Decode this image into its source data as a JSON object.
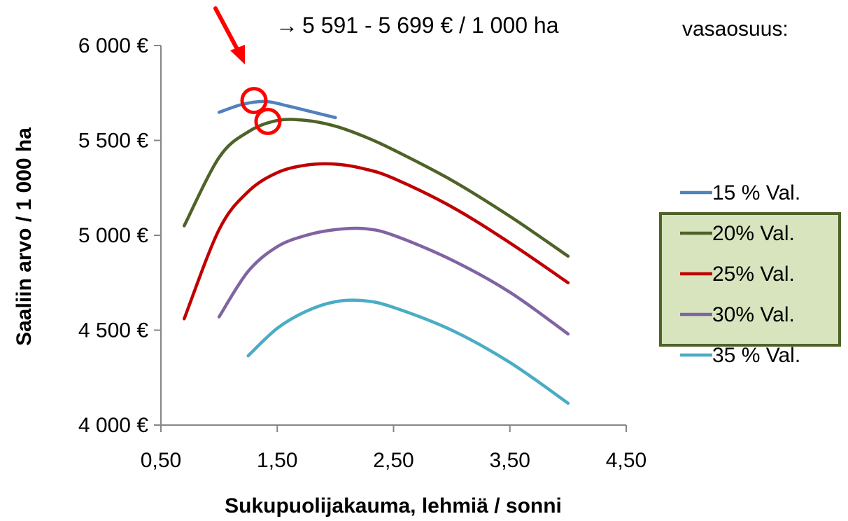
{
  "chart_data": {
    "type": "line",
    "xlabel": "Sukupuolijakauma, lehmiä / sonni",
    "ylabel": "Saaliin arvo / 1 000 ha",
    "xlim": [
      0.5,
      4.5
    ],
    "ylim": [
      4000,
      6000
    ],
    "x_ticks": [
      "0,50",
      "1,50",
      "2,50",
      "3,50",
      "4,50"
    ],
    "y_ticks": [
      "4 000 €",
      "4 500 €",
      "5 000 €",
      "5 500 €",
      "6 000 €"
    ],
    "legend_title": "vasaosuus:",
    "legend_position": "right",
    "annotation": "5 591 - 5 699 € / 1 000 ha",
    "annotation_arrow": "→",
    "highlighted_series": "20% Val.",
    "grid": false,
    "colors": {
      "highlight_box_bg": "#d7e4bd",
      "highlight_box_border": "#4f6228",
      "marker": "#ff0000"
    },
    "series": [
      {
        "name": "15 % Val.",
        "color": "#4f81bd",
        "x": [
          1.0,
          1.2,
          1.4,
          1.6,
          1.8,
          2.0
        ],
        "y": [
          5648,
          5690,
          5705,
          5680,
          5650,
          5620
        ]
      },
      {
        "name": "20% Val.",
        "color": "#4f6228",
        "x": [
          0.7,
          1.0,
          1.25,
          1.5,
          1.75,
          2.0,
          2.25,
          2.5,
          3.0,
          3.5,
          4.0
        ],
        "y": [
          5050,
          5410,
          5545,
          5605,
          5605,
          5575,
          5520,
          5450,
          5290,
          5100,
          4890
        ]
      },
      {
        "name": "25% Val.",
        "color": "#c00000",
        "x": [
          0.7,
          1.0,
          1.25,
          1.5,
          1.75,
          2.0,
          2.25,
          2.5,
          3.0,
          3.5,
          4.0
        ],
        "y": [
          4560,
          5030,
          5230,
          5330,
          5370,
          5375,
          5350,
          5300,
          5150,
          4960,
          4750
        ]
      },
      {
        "name": "30% Val.",
        "color": "#8064a2",
        "x": [
          1.0,
          1.25,
          1.5,
          1.75,
          2.0,
          2.25,
          2.5,
          3.0,
          3.5,
          4.0
        ],
        "y": [
          4570,
          4810,
          4940,
          5000,
          5030,
          5035,
          5000,
          4870,
          4700,
          4480
        ]
      },
      {
        "name": "35 % Val.",
        "color": "#4bacc6",
        "x": [
          1.25,
          1.5,
          1.75,
          2.0,
          2.25,
          2.5,
          3.0,
          3.5,
          4.0
        ],
        "y": [
          4365,
          4510,
          4600,
          4650,
          4655,
          4620,
          4500,
          4330,
          4115
        ]
      }
    ],
    "markers": [
      {
        "series": "15 % Val.",
        "x": 1.3,
        "y": 5710
      },
      {
        "series": "20% Val.",
        "x": 1.42,
        "y": 5600
      }
    ]
  }
}
